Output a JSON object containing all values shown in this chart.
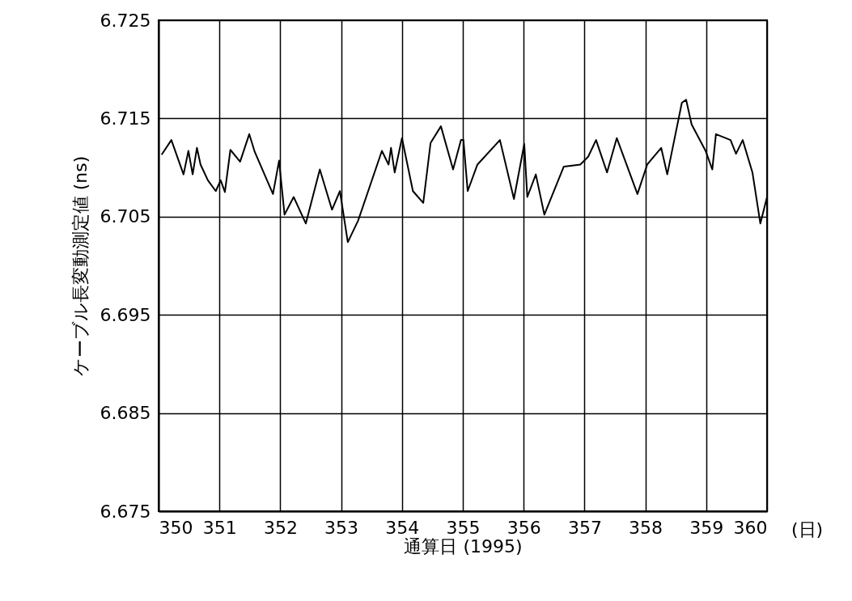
{
  "chart_data": {
    "type": "line",
    "xlabel": "通算日 (1995)",
    "ylabel": "ケーブル長変動測定値 (ns)",
    "annotations": [
      "(日)"
    ],
    "xlim": [
      350,
      360
    ],
    "xticks": [
      350,
      351,
      352,
      353,
      354,
      355,
      356,
      357,
      358,
      359,
      360
    ],
    "ylim": [
      6.675,
      6.725
    ],
    "yticks": [
      6.675,
      6.685,
      6.695,
      6.705,
      6.715,
      6.725
    ],
    "grid": true,
    "series": [
      {
        "color": "#000000",
        "x": [
          350.05,
          350.21,
          350.41,
          350.49,
          350.56,
          350.63,
          350.69,
          350.81,
          350.94,
          351.02,
          351.09,
          351.18,
          351.34,
          351.49,
          351.58,
          351.88,
          351.98,
          352.07,
          352.22,
          352.42,
          352.65,
          352.85,
          352.98,
          353.11,
          353.28,
          353.67,
          353.78,
          353.82,
          353.88,
          354.0,
          354.18,
          354.35,
          354.47,
          354.64,
          354.84,
          354.97,
          355.01,
          355.08,
          355.24,
          355.61,
          355.84,
          356.01,
          356.06,
          356.2,
          356.34,
          356.66,
          356.93,
          357.06,
          357.19,
          357.37,
          357.53,
          357.87,
          358.03,
          358.26,
          358.36,
          358.6,
          358.67,
          358.76,
          358.99,
          359.1,
          359.16,
          359.4,
          359.49,
          359.6,
          359.76,
          359.89,
          360.0
        ],
        "values": [
          6.7113,
          6.7128,
          6.7093,
          6.7117,
          6.7093,
          6.712,
          6.7103,
          6.7087,
          6.7076,
          6.7087,
          6.7075,
          6.7118,
          6.7106,
          6.7134,
          6.7116,
          6.7073,
          6.7107,
          6.7052,
          6.707,
          6.7043,
          6.7098,
          6.7057,
          6.7076,
          6.7024,
          6.7046,
          6.7117,
          6.7103,
          6.712,
          6.7095,
          6.713,
          6.7076,
          6.7064,
          6.7125,
          6.7142,
          6.7098,
          6.7128,
          6.7128,
          6.7076,
          6.7103,
          6.7128,
          6.7068,
          6.7124,
          6.707,
          6.7093,
          6.7052,
          6.7101,
          6.7103,
          6.7111,
          6.7128,
          6.7095,
          6.713,
          6.7073,
          6.7103,
          6.712,
          6.7093,
          6.7166,
          6.7169,
          6.7144,
          6.7117,
          6.7098,
          6.7134,
          6.7128,
          6.7114,
          6.7128,
          6.7095,
          6.7043,
          6.707
        ]
      }
    ]
  }
}
